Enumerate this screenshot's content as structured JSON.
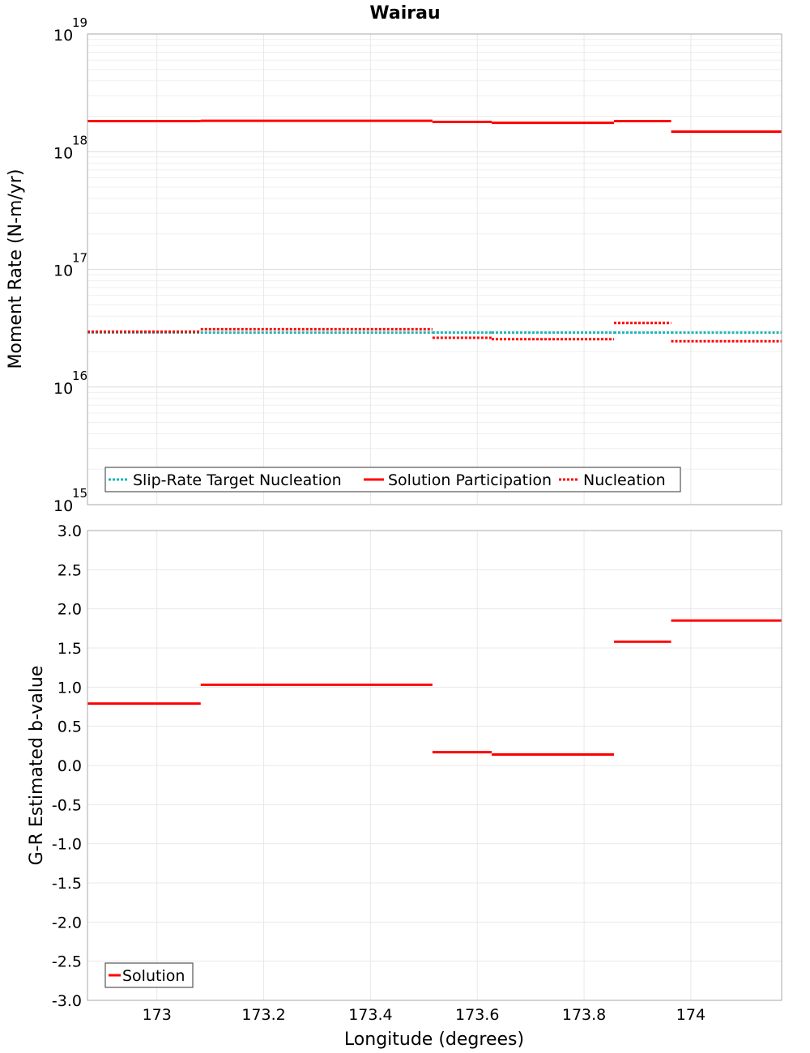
{
  "chart_data": [
    {
      "type": "line",
      "panel": "top",
      "title": "Wairau",
      "xlabel": "",
      "ylabel": "Moment Rate (N-m/yr)",
      "yscale": "log",
      "ylim": [
        1000000000000000.0,
        1e+19
      ],
      "xlim": [
        172.87,
        174.17
      ],
      "ytick_labels": [
        {
          "value": 1e+19,
          "base": "10",
          "exp": "19"
        },
        {
          "value": 1e+18,
          "base": "10",
          "exp": "18"
        },
        {
          "value": 1e+17,
          "base": "10",
          "exp": "17"
        },
        {
          "value": 1e+16,
          "base": "10",
          "exp": "16"
        },
        {
          "value": 1000000000000000.0,
          "base": "10",
          "exp": "15"
        }
      ],
      "legend_position": "bottom-left",
      "series": [
        {
          "name": "Slip-Rate Target Nucleation",
          "style": "dotted",
          "color": "#1fb5b5",
          "segments": [
            {
              "x0": 172.87,
              "x1": 173.082,
              "y": 2.9e+16
            },
            {
              "x0": 173.082,
              "x1": 173.516,
              "y": 2.9e+16
            },
            {
              "x0": 173.516,
              "x1": 173.627,
              "y": 2.9e+16
            },
            {
              "x0": 173.627,
              "x1": 173.856,
              "y": 2.9e+16
            },
            {
              "x0": 173.856,
              "x1": 173.963,
              "y": 2.9e+16
            },
            {
              "x0": 173.963,
              "x1": 174.17,
              "y": 2.9e+16
            }
          ]
        },
        {
          "name": "Solution Participation",
          "style": "solid",
          "color": "#ff0000",
          "segments": [
            {
              "x0": 172.87,
              "x1": 173.082,
              "y": 1.82e+18
            },
            {
              "x0": 173.082,
              "x1": 173.516,
              "y": 1.83e+18
            },
            {
              "x0": 173.516,
              "x1": 173.627,
              "y": 1.79e+18
            },
            {
              "x0": 173.627,
              "x1": 173.856,
              "y": 1.76e+18
            },
            {
              "x0": 173.856,
              "x1": 173.963,
              "y": 1.82e+18
            },
            {
              "x0": 173.963,
              "x1": 174.17,
              "y": 1.48e+18
            }
          ]
        },
        {
          "name": "Nucleation",
          "style": "dotted",
          "color": "#ff0000",
          "segments": [
            {
              "x0": 172.87,
              "x1": 173.082,
              "y": 2.95e+16
            },
            {
              "x0": 173.082,
              "x1": 173.516,
              "y": 3.1e+16
            },
            {
              "x0": 173.516,
              "x1": 173.627,
              "y": 2.62e+16
            },
            {
              "x0": 173.627,
              "x1": 173.856,
              "y": 2.55e+16
            },
            {
              "x0": 173.856,
              "x1": 173.963,
              "y": 3.5e+16
            },
            {
              "x0": 173.963,
              "x1": 174.17,
              "y": 2.45e+16
            }
          ]
        }
      ]
    },
    {
      "type": "line",
      "panel": "bottom",
      "title": "",
      "xlabel": "Longitude (degrees)",
      "ylabel": "G-R Estimated b-value",
      "ylim": [
        -3.0,
        3.0
      ],
      "xlim": [
        172.87,
        174.17
      ],
      "yticks": [
        "3.0",
        "2.5",
        "2.0",
        "1.5",
        "1.0",
        "0.5",
        "0.0",
        "-0.5",
        "-1.0",
        "-1.5",
        "-2.0",
        "-2.5",
        "-3.0"
      ],
      "xticks": [
        "173",
        "173.2",
        "173.4",
        "173.6",
        "173.8",
        "174"
      ],
      "legend_position": "bottom-left",
      "series": [
        {
          "name": "Solution",
          "style": "solid",
          "color": "#ff0000",
          "segments": [
            {
              "x0": 172.87,
              "x1": 173.082,
              "y": 0.79
            },
            {
              "x0": 173.082,
              "x1": 173.516,
              "y": 1.03
            },
            {
              "x0": 173.516,
              "x1": 173.627,
              "y": 0.17
            },
            {
              "x0": 173.627,
              "x1": 173.856,
              "y": 0.14
            },
            {
              "x0": 173.856,
              "x1": 173.963,
              "y": 1.58
            },
            {
              "x0": 173.963,
              "x1": 174.17,
              "y": 1.85
            }
          ]
        }
      ]
    }
  ]
}
